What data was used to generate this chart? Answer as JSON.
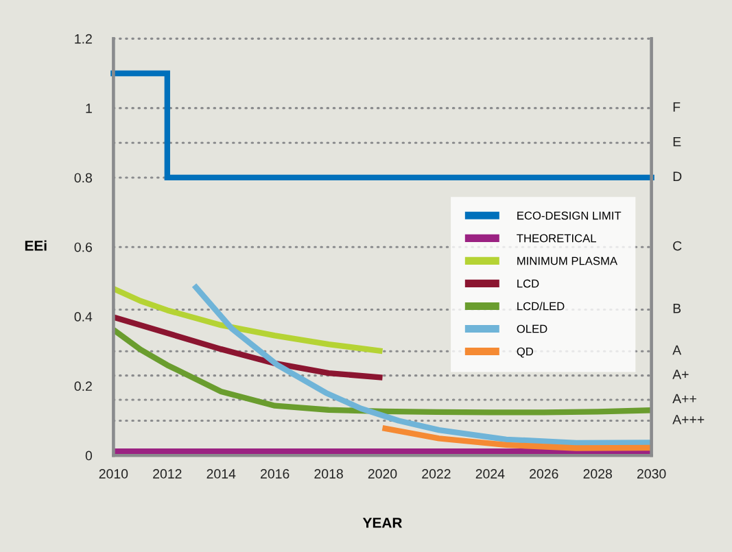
{
  "chart_data": {
    "type": "line",
    "xlabel": "YEAR",
    "ylabel": "EEi",
    "xlim": [
      2010,
      2030
    ],
    "xticks": [
      2010,
      2012,
      2014,
      2016,
      2018,
      2020,
      2022,
      2024,
      2026,
      2028,
      2030
    ],
    "ylim": [
      0,
      1.2
    ],
    "yticks": [
      0,
      0.2,
      0.4,
      0.6,
      0.8,
      1,
      1.2
    ],
    "ref_lines": [
      {
        "axis": "y",
        "value": 0.1,
        "label": "A+++",
        "line_style": "dotted",
        "color": "#8a8b8d"
      },
      {
        "axis": "y",
        "value": 0.16,
        "label": "A++",
        "line_style": "dotted",
        "color": "#8a8b8d"
      },
      {
        "axis": "y",
        "value": 0.23,
        "label": "A+",
        "line_style": "dotted",
        "color": "#8a8b8d"
      },
      {
        "axis": "y",
        "value": 0.3,
        "label": "A",
        "line_style": "dotted",
        "color": "#8a8b8d"
      },
      {
        "axis": "y",
        "value": 0.42,
        "label": "B",
        "line_style": "dotted",
        "color": "#8a8b8d"
      },
      {
        "axis": "y",
        "value": 0.6,
        "label": "C",
        "line_style": "dotted",
        "color": "#8a8b8d"
      },
      {
        "axis": "y",
        "value": 0.8,
        "label": "D",
        "line_style": "dotted",
        "color": "#8a8b8d"
      },
      {
        "axis": "y",
        "value": 0.9,
        "label": "E",
        "line_style": "dotted",
        "color": "#8a8b8d"
      },
      {
        "axis": "y",
        "value": 1.0,
        "label": "F",
        "line_style": "dotted",
        "color": "#8a8b8d"
      }
    ],
    "legend": "center right",
    "line_style": "solid",
    "marker": "none",
    "series": [
      {
        "name": "ECO-DESIGN LIMIT",
        "type": "step",
        "color": "#0070bb",
        "x": [
          2010,
          2012,
          2030
        ],
        "values": [
          1.1,
          0.8,
          0.8
        ]
      },
      {
        "name": "THEORETICAL",
        "color": "#9b2282",
        "x": [
          2010,
          2030
        ],
        "values": [
          0.012,
          0.012
        ]
      },
      {
        "name": "MINIMUM PLASMA",
        "color": "#b5d334",
        "x": [
          2010,
          2011,
          2012,
          2014,
          2016,
          2018,
          2020
        ],
        "values": [
          0.48,
          0.445,
          0.418,
          0.375,
          0.345,
          0.32,
          0.3
        ]
      },
      {
        "name": "LCD",
        "color": "#8b1530",
        "x": [
          2010,
          2012,
          2014,
          2016,
          2018,
          2020
        ],
        "values": [
          0.398,
          0.352,
          0.306,
          0.265,
          0.237,
          0.224
        ]
      },
      {
        "name": "LCD/LED",
        "color": "#6a9d2e",
        "x": [
          2010,
          2011,
          2012,
          2014,
          2016,
          2018,
          2020,
          2022,
          2024,
          2026,
          2028,
          2030
        ],
        "values": [
          0.362,
          0.305,
          0.26,
          0.184,
          0.143,
          0.131,
          0.127,
          0.125,
          0.124,
          0.124,
          0.126,
          0.13
        ]
      },
      {
        "name": "OLED",
        "color": "#6fb4d8",
        "x": [
          2013,
          2014.4,
          2016.1,
          2017.9,
          2019.2,
          2020.6,
          2022.1,
          2024.6,
          2027.2,
          2030
        ],
        "values": [
          0.49,
          0.365,
          0.26,
          0.18,
          0.135,
          0.1,
          0.073,
          0.046,
          0.036,
          0.037
        ]
      },
      {
        "name": "QD",
        "color": "#f58a33",
        "x": [
          2020,
          2022.1,
          2024.6,
          2027.2,
          2030
        ],
        "values": [
          0.079,
          0.049,
          0.03,
          0.021,
          0.022
        ]
      }
    ]
  }
}
